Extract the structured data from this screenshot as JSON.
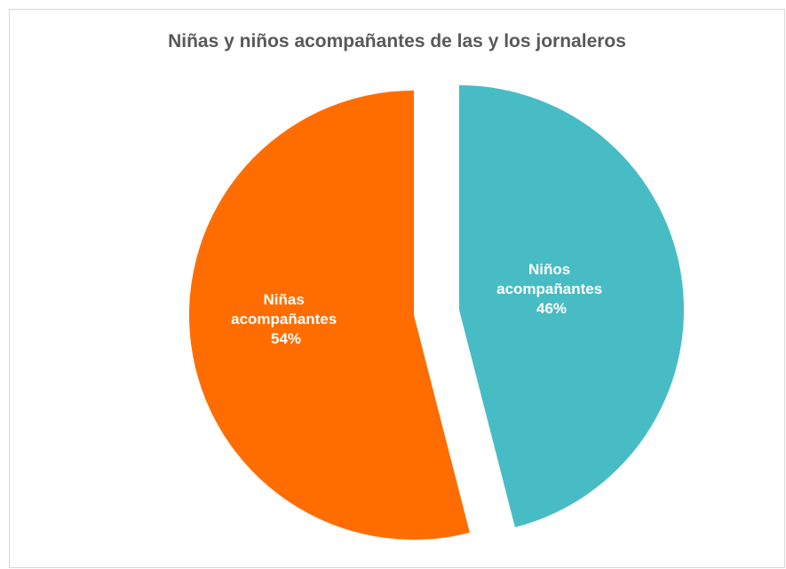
{
  "chart_data": {
    "type": "pie",
    "title": "Niñas y niños acompañantes de las y los jornaleros",
    "slices": [
      {
        "label": "Niñas",
        "label_line2": "acompañantes",
        "value_label": "54%",
        "value": 54,
        "color": "#ff6d00"
      },
      {
        "label": "Niños",
        "label_line2": "acompañantes",
        "value_label": "46%",
        "value": 46,
        "color": "#48bcc5"
      }
    ],
    "legend": "none",
    "exploded": true
  }
}
